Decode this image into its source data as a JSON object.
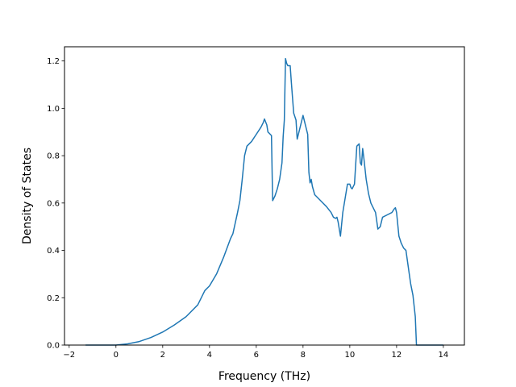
{
  "chart_data": {
    "type": "line",
    "title": "",
    "xlabel": "Frequency (THz)",
    "ylabel": "Density of States",
    "xlim": [
      -2.2,
      14.9
    ],
    "ylim": [
      0,
      1.26
    ],
    "xticks": [
      -2,
      0,
      2,
      4,
      6,
      8,
      10,
      12,
      14
    ],
    "xtick_labels": [
      "−2",
      "0",
      "2",
      "4",
      "6",
      "8",
      "10",
      "12",
      "14"
    ],
    "yticks": [
      0.0,
      0.2,
      0.4,
      0.6,
      0.8,
      1.0,
      1.2
    ],
    "ytick_labels": [
      "0.0",
      "0.2",
      "0.4",
      "0.6",
      "0.8",
      "1.0",
      "1.2"
    ],
    "grid": false,
    "legend": "none",
    "series": [
      {
        "color": "#1f77b4",
        "x": [
          -1.3,
          -0.5,
          0.0,
          0.5,
          1.0,
          1.5,
          2.0,
          2.5,
          3.0,
          3.5,
          3.8,
          4.0,
          4.3,
          4.6,
          4.9,
          5.0,
          5.2,
          5.3,
          5.4,
          5.5,
          5.6,
          5.8,
          6.0,
          6.2,
          6.3,
          6.35,
          6.45,
          6.5,
          6.6,
          6.65,
          6.7,
          6.8,
          6.9,
          7.0,
          7.1,
          7.15,
          7.2,
          7.25,
          7.3,
          7.35,
          7.45,
          7.5,
          7.6,
          7.7,
          7.75,
          7.85,
          8.0,
          8.1,
          8.2,
          8.25,
          8.3,
          8.35,
          8.4,
          8.5,
          8.7,
          9.0,
          9.2,
          9.3,
          9.4,
          9.45,
          9.5,
          9.6,
          9.7,
          9.8,
          9.9,
          10.0,
          10.05,
          10.1,
          10.2,
          10.3,
          10.4,
          10.45,
          10.5,
          10.55,
          10.6,
          10.7,
          10.8,
          10.9,
          11.0,
          11.1,
          11.2,
          11.3,
          11.4,
          11.6,
          11.8,
          11.9,
          11.95,
          12.0,
          12.1,
          12.2,
          12.3,
          12.4,
          12.5,
          12.6,
          12.7,
          12.8,
          12.85,
          13.0,
          13.5,
          14.0
        ],
        "y": [
          0.0,
          0.0,
          0.0,
          0.005,
          0.015,
          0.032,
          0.055,
          0.085,
          0.12,
          0.17,
          0.23,
          0.25,
          0.3,
          0.37,
          0.45,
          0.47,
          0.56,
          0.61,
          0.7,
          0.8,
          0.84,
          0.86,
          0.89,
          0.92,
          0.94,
          0.955,
          0.93,
          0.9,
          0.89,
          0.885,
          0.61,
          0.63,
          0.66,
          0.7,
          0.77,
          0.88,
          0.95,
          1.21,
          1.19,
          1.18,
          1.18,
          1.11,
          0.98,
          0.95,
          0.87,
          0.91,
          0.97,
          0.93,
          0.89,
          0.73,
          0.685,
          0.7,
          0.67,
          0.635,
          0.615,
          0.585,
          0.56,
          0.54,
          0.535,
          0.54,
          0.52,
          0.46,
          0.56,
          0.62,
          0.68,
          0.68,
          0.665,
          0.66,
          0.68,
          0.84,
          0.85,
          0.77,
          0.76,
          0.83,
          0.79,
          0.7,
          0.64,
          0.6,
          0.58,
          0.56,
          0.49,
          0.5,
          0.54,
          0.55,
          0.56,
          0.575,
          0.58,
          0.56,
          0.46,
          0.43,
          0.41,
          0.4,
          0.33,
          0.26,
          0.21,
          0.12,
          0.0,
          0.0,
          0.0,
          0.0
        ]
      }
    ]
  }
}
